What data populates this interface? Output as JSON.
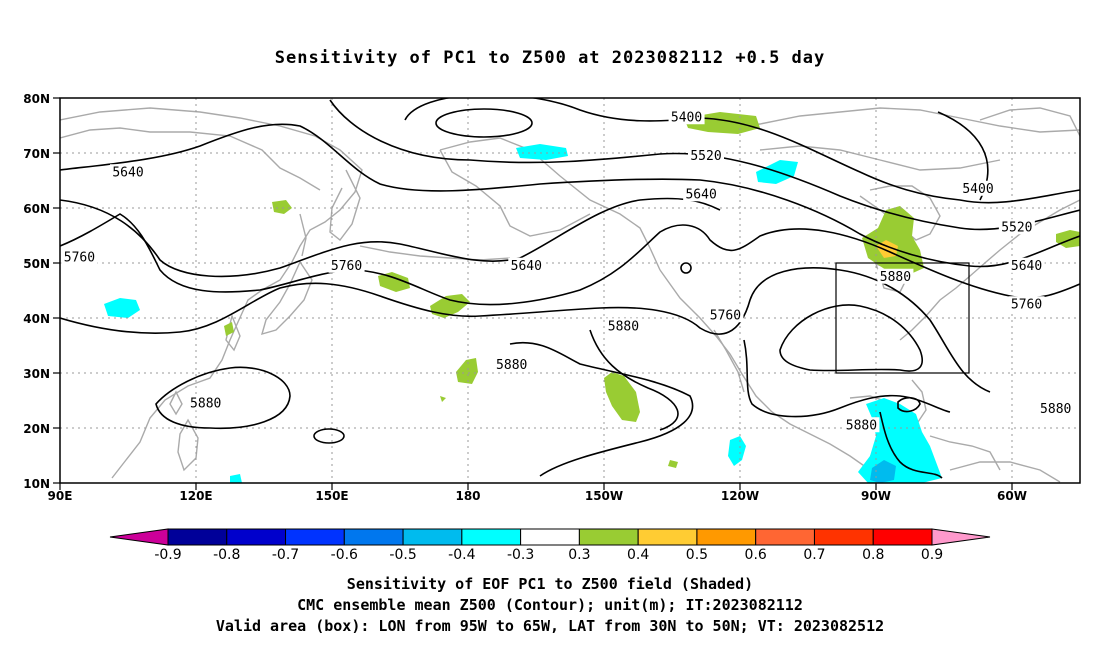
{
  "title": "Sensitivity of PC1 to Z500 at 2023082112 +0.5 day",
  "map": {
    "lon_labels": [
      "90E",
      "120E",
      "150E",
      "180",
      "150W",
      "120W",
      "90W",
      "60W"
    ],
    "lat_labels": [
      "80N",
      "70N",
      "60N",
      "50N",
      "40N",
      "30N",
      "20N",
      "10N"
    ],
    "contour_labels": [
      {
        "text": "5400",
        "lon": -141,
        "lat": 76.5
      },
      {
        "text": "5520",
        "lon": -137,
        "lat": 69.5
      },
      {
        "text": "5400",
        "lon": -81,
        "lat": 63.5
      },
      {
        "text": "5520",
        "lon": -73,
        "lat": 56.5
      },
      {
        "text": "5640",
        "lon": 104,
        "lat": 66.5
      },
      {
        "text": "5640",
        "lon": -138,
        "lat": 62.5
      },
      {
        "text": "5640",
        "lon": 186,
        "lat": 49.5
      },
      {
        "text": "5640",
        "lon": -71,
        "lat": 49.5
      },
      {
        "text": "5760",
        "lon": 94,
        "lat": 51.0
      },
      {
        "text": "5760",
        "lon": 149,
        "lat": 49.5
      },
      {
        "text": "5760",
        "lon": -133,
        "lat": 40.5
      },
      {
        "text": "5760",
        "lon": -71,
        "lat": 42.5
      },
      {
        "text": "5880",
        "lon": 206,
        "lat": 38.5
      },
      {
        "text": "5880",
        "lon": -98,
        "lat": 47.5
      },
      {
        "text": "5880",
        "lon": 183,
        "lat": 31.5
      },
      {
        "text": "5880",
        "lon": 120,
        "lat": 24.5
      },
      {
        "text": "5880",
        "lon": -105,
        "lat": 20.5
      },
      {
        "text": "5880",
        "lon": -65,
        "lat": 23.5
      }
    ],
    "valid_box": {
      "lon_min": -95,
      "lon_max": -65,
      "lat_min": 30,
      "lat_max": 50
    }
  },
  "colorbar": {
    "labels": [
      "-0.9",
      "-0.8",
      "-0.7",
      "-0.6",
      "-0.5",
      "-0.4",
      "-0.3",
      "0.3",
      "0.4",
      "0.5",
      "0.6",
      "0.7",
      "0.8",
      "0.9"
    ],
    "colors": [
      "#cc0099",
      "#000099",
      "#0000cc",
      "#0033ff",
      "#0077ee",
      "#00bbee",
      "#00ffff",
      "#ffffff",
      "#99cc33",
      "#ffcc33",
      "#ff9900",
      "#ff6633",
      "#ff3300",
      "#ff0000",
      "#ff99cc"
    ]
  },
  "caption": {
    "line1": "Sensitivity of EOF PC1 to Z500 field (Shaded)",
    "line2": "CMC ensemble mean Z500 (Contour); unit(m); IT:2023082112",
    "line3": "Valid area (box): LON from 95W to 65W, LAT from 30N to 50N; VT: 2023082512"
  }
}
